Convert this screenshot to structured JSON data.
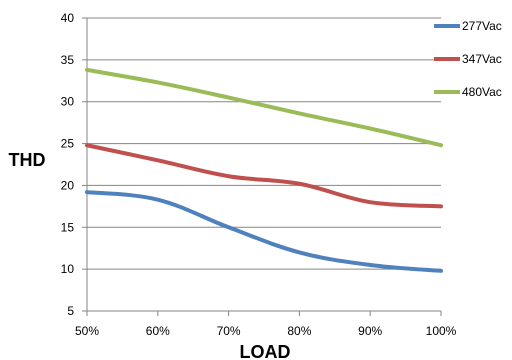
{
  "chart_data": {
    "type": "line",
    "x": [
      "50%",
      "60%",
      "70%",
      "80%",
      "90%",
      "100%"
    ],
    "series": [
      {
        "name": "277Vac",
        "color": "#4f81bd",
        "values": [
          19.2,
          18.3,
          15.0,
          12.0,
          10.5,
          9.8
        ]
      },
      {
        "name": "347Vac",
        "color": "#c0504d",
        "values": [
          24.8,
          23.0,
          21.1,
          20.2,
          18.0,
          17.5
        ]
      },
      {
        "name": "480Vac",
        "color": "#9bbb59",
        "values": [
          33.8,
          32.3,
          30.5,
          28.6,
          26.8,
          24.8
        ]
      }
    ],
    "ylabel": "THD",
    "xlabel": "LOAD",
    "ylim": [
      5,
      40
    ],
    "yticks": [
      5,
      10,
      15,
      20,
      25,
      30,
      35,
      40
    ],
    "grid": true,
    "legend_position": "right"
  }
}
